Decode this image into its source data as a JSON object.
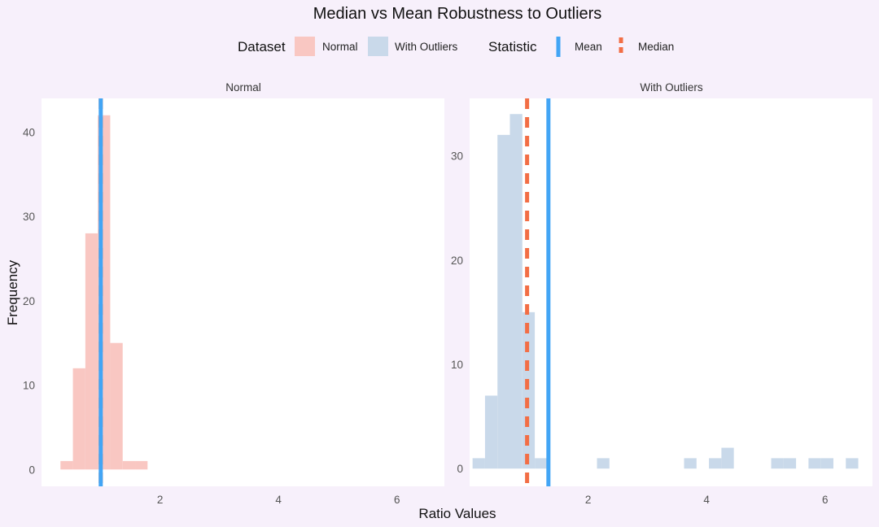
{
  "colors": {
    "normal_fill": "#f9c7c2",
    "outlier_fill": "#c9d9ea",
    "mean": "#42a5f5",
    "median": "#f26e45",
    "panel_bg": "#ffffff",
    "page_bg": "#f7f0fb"
  },
  "chart_data": {
    "type": "bar",
    "title": "Median vs Mean Robustness to Outliers",
    "xlabel": "Ratio Values",
    "ylabel": "Frequency",
    "xlim": [
      0,
      6.8
    ],
    "x_ticks": [
      2,
      4,
      6
    ],
    "legend": {
      "dataset_title": "Dataset",
      "dataset_entries": [
        "Normal",
        "With Outliers"
      ],
      "statistic_title": "Statistic",
      "statistic_entries": [
        "Mean",
        "Median"
      ],
      "placement": "top-center"
    },
    "panels": [
      {
        "name": "Normal",
        "ylim": [
          -2,
          44
        ],
        "y_ticks": [
          0,
          10,
          20,
          30,
          40
        ],
        "bins": [
          {
            "x0": 0.32,
            "x1": 0.53,
            "count": 1
          },
          {
            "x0": 0.53,
            "x1": 0.74,
            "count": 12
          },
          {
            "x0": 0.74,
            "x1": 0.95,
            "count": 28
          },
          {
            "x0": 0.95,
            "x1": 1.16,
            "count": 42
          },
          {
            "x0": 1.16,
            "x1": 1.37,
            "count": 15
          },
          {
            "x0": 1.37,
            "x1": 1.58,
            "count": 1
          },
          {
            "x0": 1.58,
            "x1": 1.79,
            "count": 1
          }
        ],
        "mean": 1.0,
        "median": 1.0
      },
      {
        "name": "With Outliers",
        "ylim": [
          -1.7,
          35.5
        ],
        "y_ticks": [
          0,
          10,
          20,
          30
        ],
        "bins": [
          {
            "x0": 0.05,
            "x1": 0.26,
            "count": 1
          },
          {
            "x0": 0.26,
            "x1": 0.47,
            "count": 7
          },
          {
            "x0": 0.47,
            "x1": 0.68,
            "count": 32
          },
          {
            "x0": 0.68,
            "x1": 0.89,
            "count": 34
          },
          {
            "x0": 0.89,
            "x1": 1.1,
            "count": 15
          },
          {
            "x0": 1.1,
            "x1": 1.31,
            "count": 1
          },
          {
            "x0": 2.15,
            "x1": 2.36,
            "count": 1
          },
          {
            "x0": 3.62,
            "x1": 3.83,
            "count": 1
          },
          {
            "x0": 4.04,
            "x1": 4.25,
            "count": 1
          },
          {
            "x0": 4.25,
            "x1": 4.46,
            "count": 2
          },
          {
            "x0": 5.09,
            "x1": 5.3,
            "count": 1
          },
          {
            "x0": 5.3,
            "x1": 5.51,
            "count": 1
          },
          {
            "x0": 5.72,
            "x1": 5.93,
            "count": 1
          },
          {
            "x0": 5.93,
            "x1": 6.14,
            "count": 1
          },
          {
            "x0": 6.35,
            "x1": 6.56,
            "count": 1
          }
        ],
        "mean": 1.33,
        "median": 0.97
      }
    ]
  }
}
